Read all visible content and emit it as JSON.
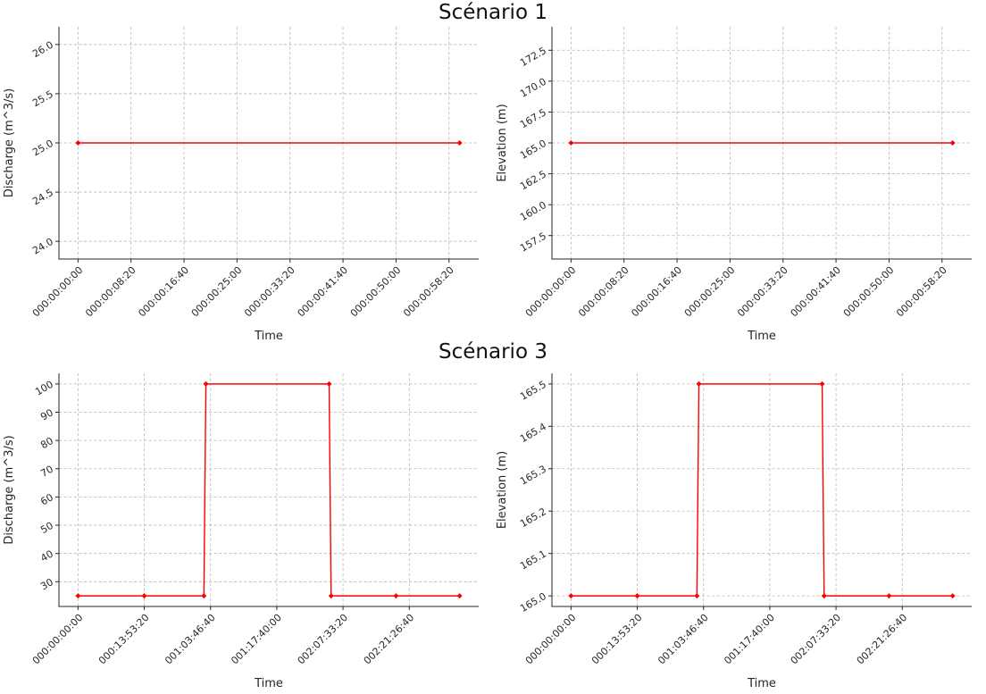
{
  "figure": {
    "sections": [
      {
        "title": "Scénario 1"
      },
      {
        "title": "Scénario 3"
      }
    ]
  },
  "chart_data": [
    {
      "id": "scenario1-discharge",
      "figure_title": "Scénario 1",
      "type": "line",
      "xlabel": "Time",
      "ylabel": "Discharge (m^3/s)",
      "line_color": "#ff0000",
      "grid": true,
      "x_format": "DDD:HH:MM:SS",
      "xlim": [
        -180,
        3780
      ],
      "ylim": [
        23.82,
        26.18
      ],
      "x_ticks": {
        "values": [
          0,
          500,
          1000,
          1500,
          2000,
          2500,
          3000,
          3500
        ],
        "labels": [
          "000:00:00:00",
          "000:00:08:20",
          "000:00:16:40",
          "000:00:25:00",
          "000:00:33:20",
          "000:00:41:40",
          "000:00:50:00",
          "000:00:58:20"
        ]
      },
      "y_ticks": {
        "values": [
          24.0,
          24.5,
          25.0,
          25.5,
          26.0
        ],
        "labels": [
          "24.0",
          "24.5",
          "25.0",
          "25.5",
          "26.0"
        ]
      },
      "series": [
        {
          "name": "Discharge",
          "points": [
            [
              0,
              25.0
            ],
            [
              3600,
              25.0
            ]
          ]
        }
      ]
    },
    {
      "id": "scenario1-elevation",
      "figure_title": "Scénario 1",
      "type": "line",
      "xlabel": "Time",
      "ylabel": "Elevation (m)",
      "line_color": "#ff0000",
      "grid": true,
      "x_format": "DDD:HH:MM:SS",
      "xlim": [
        -180,
        3780
      ],
      "ylim": [
        155.6,
        174.4
      ],
      "x_ticks": {
        "values": [
          0,
          500,
          1000,
          1500,
          2000,
          2500,
          3000,
          3500
        ],
        "labels": [
          "000:00:00:00",
          "000:00:08:20",
          "000:00:16:40",
          "000:00:25:00",
          "000:00:33:20",
          "000:00:41:40",
          "000:00:50:00",
          "000:00:58:20"
        ]
      },
      "y_ticks": {
        "values": [
          157.5,
          160.0,
          162.5,
          165.0,
          167.5,
          170.0,
          172.5
        ],
        "labels": [
          "157.5",
          "160.0",
          "162.5",
          "165.0",
          "167.5",
          "170.0",
          "172.5"
        ]
      },
      "series": [
        {
          "name": "Elevation",
          "points": [
            [
              0,
              165.0
            ],
            [
              3600,
              165.0
            ]
          ]
        }
      ]
    },
    {
      "id": "scenario3-discharge",
      "figure_title": "Scénario 3",
      "type": "line",
      "xlabel": "Time",
      "ylabel": "Discharge (m^3/s)",
      "line_color": "#ff0000",
      "grid": true,
      "x_format": "DDD:HH:MM:SS",
      "xlim": [
        -14400,
        302400
      ],
      "ylim": [
        21.25,
        103.75
      ],
      "x_ticks": {
        "values": [
          0,
          50000,
          100000,
          150000,
          200000,
          250000
        ],
        "labels": [
          "000:00:00:00",
          "000:13:53:20",
          "001:03:46:40",
          "001:17:40:00",
          "002:07:33:20",
          "002:21:26:40"
        ]
      },
      "y_ticks": {
        "values": [
          30,
          40,
          50,
          60,
          70,
          80,
          90,
          100
        ],
        "labels": [
          "30",
          "40",
          "50",
          "60",
          "70",
          "80",
          "90",
          "100"
        ]
      },
      "series": [
        {
          "name": "Discharge",
          "points": [
            [
              0,
              25
            ],
            [
              50000,
              25
            ],
            [
              95000,
              25
            ],
            [
              96500,
              100
            ],
            [
              189500,
              100
            ],
            [
              191000,
              25
            ],
            [
              240000,
              25
            ],
            [
              288000,
              25
            ]
          ]
        }
      ]
    },
    {
      "id": "scenario3-elevation",
      "figure_title": "Scénario 3",
      "type": "line",
      "xlabel": "Time",
      "ylabel": "Elevation (m)",
      "line_color": "#ff0000",
      "grid": true,
      "x_format": "DDD:HH:MM:SS",
      "xlim": [
        -14400,
        302400
      ],
      "ylim": [
        164.975,
        165.525
      ],
      "x_ticks": {
        "values": [
          0,
          50000,
          100000,
          150000,
          200000,
          250000
        ],
        "labels": [
          "000:00:00:00",
          "000:13:53:20",
          "001:03:46:40",
          "001:17:40:00",
          "002:07:33:20",
          "002:21:26:40"
        ]
      },
      "y_ticks": {
        "values": [
          165.0,
          165.1,
          165.2,
          165.3,
          165.4,
          165.5
        ],
        "labels": [
          "165.0",
          "165.1",
          "165.2",
          "165.3",
          "165.4",
          "165.5"
        ]
      },
      "series": [
        {
          "name": "Elevation",
          "points": [
            [
              0,
              165.0
            ],
            [
              50000,
              165.0
            ],
            [
              95000,
              165.0
            ],
            [
              96500,
              165.5
            ],
            [
              189500,
              165.5
            ],
            [
              191000,
              165.0
            ],
            [
              240000,
              165.0
            ],
            [
              288000,
              165.0
            ]
          ]
        }
      ]
    }
  ]
}
